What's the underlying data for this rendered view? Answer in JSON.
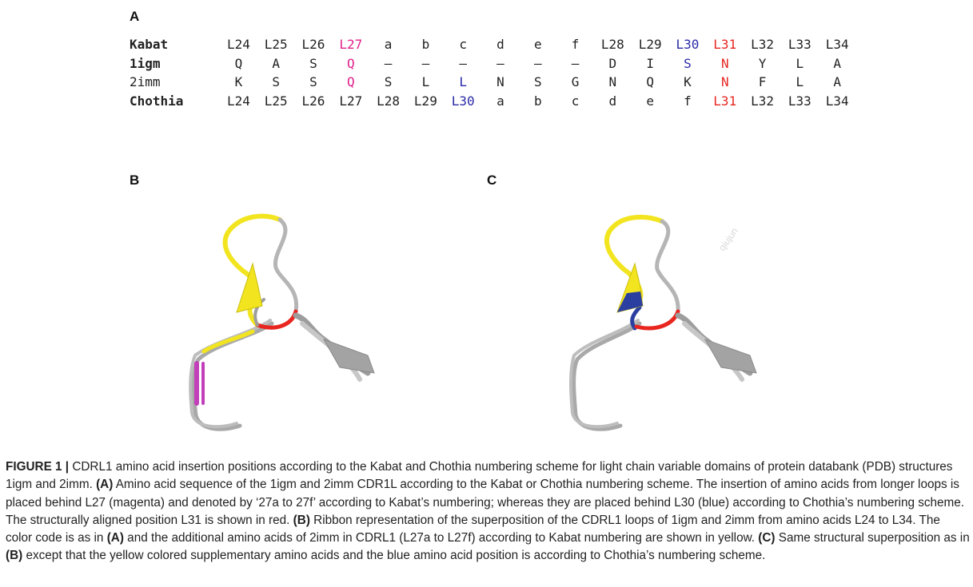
{
  "panels": {
    "a": "A",
    "b": "B",
    "c": "C"
  },
  "sequence_table": {
    "rows": [
      {
        "label": "Kabat",
        "bold": true,
        "cells": [
          {
            "t": "L24"
          },
          {
            "t": "L25"
          },
          {
            "t": "L26"
          },
          {
            "t": "L27",
            "color": "magenta"
          },
          {
            "t": "a"
          },
          {
            "t": "b"
          },
          {
            "t": "c"
          },
          {
            "t": "d"
          },
          {
            "t": "e"
          },
          {
            "t": "f"
          },
          {
            "t": "L28"
          },
          {
            "t": "L29"
          },
          {
            "t": "L30",
            "color": "blue"
          },
          {
            "t": "L31",
            "color": "red"
          },
          {
            "t": "L32"
          },
          {
            "t": "L33"
          },
          {
            "t": "L34"
          }
        ]
      },
      {
        "label": "1igm",
        "bold": true,
        "cells": [
          {
            "t": "Q"
          },
          {
            "t": "A"
          },
          {
            "t": "S"
          },
          {
            "t": "Q",
            "color": "magenta"
          },
          {
            "t": "–"
          },
          {
            "t": "–"
          },
          {
            "t": "–"
          },
          {
            "t": "–"
          },
          {
            "t": "–"
          },
          {
            "t": "–"
          },
          {
            "t": "D"
          },
          {
            "t": "I"
          },
          {
            "t": "S",
            "color": "blue"
          },
          {
            "t": "N",
            "color": "red"
          },
          {
            "t": "Y"
          },
          {
            "t": "L"
          },
          {
            "t": "A"
          }
        ]
      },
      {
        "label": "2imm",
        "bold": false,
        "cells": [
          {
            "t": "K"
          },
          {
            "t": "S"
          },
          {
            "t": "S"
          },
          {
            "t": "Q",
            "color": "magenta"
          },
          {
            "t": "S"
          },
          {
            "t": "L"
          },
          {
            "t": "L",
            "color": "blue"
          },
          {
            "t": "N"
          },
          {
            "t": "S"
          },
          {
            "t": "G"
          },
          {
            "t": "N"
          },
          {
            "t": "Q"
          },
          {
            "t": "K"
          },
          {
            "t": "N",
            "color": "red"
          },
          {
            "t": "F"
          },
          {
            "t": "L"
          },
          {
            "t": "A"
          }
        ]
      },
      {
        "label": "Chothia",
        "bold": true,
        "cells": [
          {
            "t": "L24"
          },
          {
            "t": "L25"
          },
          {
            "t": "L26"
          },
          {
            "t": "L27"
          },
          {
            "t": "L28"
          },
          {
            "t": "L29"
          },
          {
            "t": "L30",
            "color": "blue"
          },
          {
            "t": "a"
          },
          {
            "t": "b"
          },
          {
            "t": "c"
          },
          {
            "t": "d"
          },
          {
            "t": "e"
          },
          {
            "t": "f"
          },
          {
            "t": "L31",
            "color": "red"
          },
          {
            "t": "L32"
          },
          {
            "t": "L33"
          },
          {
            "t": "L34"
          }
        ]
      }
    ]
  },
  "watermark": "qiujun",
  "colors": {
    "magenta": "#e0218a",
    "blue": "#2a2aa8",
    "red": "#e8261f",
    "yellow": "#f2e51f",
    "gray": "#a9a9a9",
    "structure_magenta": "#c23fb9",
    "structure_blue": "#2b3fa0"
  },
  "caption": {
    "figure_label": "FIGURE 1 |",
    "parts": [
      {
        "text": " CDRL1 amino acid insertion positions according to the Kabat and Chothia numbering scheme for light chain variable domains of protein databank (PDB) structures 1igm and 2imm. "
      },
      {
        "text": "(A)",
        "bold": true
      },
      {
        "text": " Amino acid sequence of the 1igm and 2imm CDR1L according to the Kabat or Chothia numbering scheme. The insertion of amino acids from longer loops is placed behind L27 (magenta) and denoted by ‘27a to 27f’ according to Kabat’s numbering; whereas they are placed behind L30 (blue) according to Chothia’s numbering scheme. The structurally aligned position L31 is shown in red. "
      },
      {
        "text": "(B)",
        "bold": true
      },
      {
        "text": " Ribbon representation of the superposition of the CDRL1 loops of 1igm and 2imm from amino acids L24 to L34. The color code is as in "
      },
      {
        "text": "(A)",
        "bold": true
      },
      {
        "text": " and the additional amino acids of 2imm in CDRL1 (L27a to L27f) according to Kabat numbering are shown in yellow. "
      },
      {
        "text": "(C)",
        "bold": true
      },
      {
        "text": " Same structural superposition as in "
      },
      {
        "text": "(B)",
        "bold": true
      },
      {
        "text": " except that the yellow colored supplementary amino acids and the blue amino acid position is according to Chothia’s numbering scheme."
      }
    ]
  }
}
